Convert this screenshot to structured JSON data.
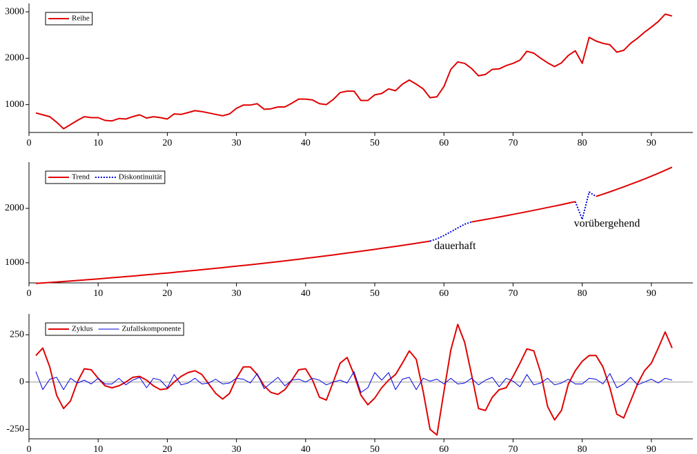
{
  "chart_data": [
    {
      "type": "line",
      "legend": "upper left",
      "xlim": [
        0,
        96
      ],
      "xticks": [
        0,
        10,
        20,
        30,
        40,
        50,
        60,
        70,
        80,
        90
      ],
      "ylim": [
        400,
        3180
      ],
      "yticks": [
        1000,
        2000,
        3000
      ],
      "x": [
        1,
        2,
        3,
        4,
        5,
        6,
        7,
        8,
        9,
        10,
        11,
        12,
        13,
        14,
        15,
        16,
        17,
        18,
        19,
        20,
        21,
        22,
        23,
        24,
        25,
        26,
        27,
        28,
        29,
        30,
        31,
        32,
        33,
        34,
        35,
        36,
        37,
        38,
        39,
        40,
        41,
        42,
        43,
        44,
        45,
        46,
        47,
        48,
        49,
        50,
        51,
        52,
        53,
        54,
        55,
        56,
        57,
        58,
        59,
        60,
        61,
        62,
        63,
        64,
        65,
        66,
        67,
        68,
        69,
        70,
        71,
        72,
        73,
        74,
        75,
        76,
        77,
        78,
        79,
        80,
        81,
        82,
        83,
        84,
        85,
        86,
        87,
        88,
        89,
        90,
        91,
        92,
        93
      ],
      "series": [
        {
          "name": "Reihe",
          "color": "#e00000",
          "linestyle": "solid",
          "linewidth": 2,
          "values": [
            820,
            780,
            740,
            620,
            480,
            570,
            660,
            740,
            720,
            720,
            660,
            650,
            700,
            690,
            740,
            780,
            710,
            740,
            720,
            690,
            800,
            790,
            830,
            870,
            850,
            820,
            790,
            760,
            800,
            920,
            990,
            990,
            1020,
            900,
            910,
            950,
            950,
            1030,
            1120,
            1120,
            1100,
            1020,
            1000,
            1110,
            1260,
            1290,
            1290,
            1090,
            1090,
            1210,
            1240,
            1340,
            1300,
            1440,
            1530,
            1440,
            1340,
            1150,
            1170,
            1390,
            1760,
            1920,
            1890,
            1780,
            1620,
            1650,
            1760,
            1770,
            1840,
            1890,
            1960,
            2150,
            2110,
            2000,
            1900,
            1820,
            1900,
            2060,
            2160,
            1890,
            2450,
            2370,
            2320,
            2290,
            2130,
            2170,
            2320,
            2430,
            2560,
            2670,
            2790,
            2950,
            2910
          ]
        }
      ]
    },
    {
      "type": "line",
      "legend": "upper left",
      "xlim": [
        0,
        96
      ],
      "xticks": [
        0,
        10,
        20,
        30,
        40,
        50,
        60,
        70,
        80,
        90
      ],
      "ylim": [
        630,
        2850
      ],
      "yticks": [
        1000,
        2000
      ],
      "annotations": [
        "dauerhaft",
        "vorübergehend"
      ],
      "x": [
        1,
        2,
        3,
        4,
        5,
        6,
        7,
        8,
        9,
        10,
        11,
        12,
        13,
        14,
        15,
        16,
        17,
        18,
        19,
        20,
        21,
        22,
        23,
        24,
        25,
        26,
        27,
        28,
        29,
        30,
        31,
        32,
        33,
        34,
        35,
        36,
        37,
        38,
        39,
        40,
        41,
        42,
        43,
        44,
        45,
        46,
        47,
        48,
        49,
        50,
        51,
        52,
        53,
        54,
        55,
        56,
        57,
        58,
        59,
        60,
        61,
        62,
        63,
        64,
        65,
        66,
        67,
        68,
        69,
        70,
        71,
        72,
        73,
        74,
        75,
        76,
        77,
        78,
        79,
        80,
        81,
        82,
        83,
        84,
        85,
        86,
        87,
        88,
        89,
        90,
        91,
        92,
        93
      ],
      "series": [
        {
          "name": "Trend",
          "color": "#e00000",
          "linestyle": "solid",
          "linewidth": 2,
          "values": [
            620,
            629,
            638,
            647,
            656,
            665,
            675,
            685,
            694,
            704,
            714,
            725,
            735,
            746,
            756,
            767,
            778,
            789,
            801,
            812,
            824,
            836,
            848,
            860,
            872,
            885,
            898,
            910,
            924,
            937,
            950,
            964,
            978,
            992,
            1006,
            1021,
            1035,
            1050,
            1065,
            1081,
            1096,
            1112,
            1128,
            1144,
            1161,
            1178,
            1194,
            1212,
            1229,
            1247,
            1265,
            1283,
            1301,
            1320,
            1339,
            1358,
            1378,
            1398,
            null,
            null,
            null,
            null,
            null,
            1750,
            1773,
            1796,
            1819,
            1842,
            1866,
            1890,
            1914,
            1939,
            1964,
            1990,
            2016,
            2042,
            2069,
            2096,
            2124,
            null,
            null,
            2220,
            2262,
            2305,
            2350,
            2396,
            2443,
            2491,
            2541,
            2592,
            2645,
            2700,
            2757
          ]
        },
        {
          "name": "Diskontinuität",
          "color": "#0000dd",
          "linestyle": "dotted",
          "linewidth": 2,
          "values": [
            null,
            null,
            null,
            null,
            null,
            null,
            null,
            null,
            null,
            null,
            null,
            null,
            null,
            null,
            null,
            null,
            null,
            null,
            null,
            null,
            null,
            null,
            null,
            null,
            null,
            null,
            null,
            null,
            null,
            null,
            null,
            null,
            null,
            null,
            null,
            null,
            null,
            null,
            null,
            null,
            null,
            null,
            null,
            null,
            null,
            null,
            null,
            null,
            null,
            null,
            null,
            null,
            null,
            null,
            null,
            null,
            null,
            1398,
            1440,
            1500,
            1570,
            1640,
            1710,
            1750,
            null,
            null,
            null,
            null,
            null,
            null,
            null,
            null,
            null,
            null,
            null,
            null,
            null,
            null,
            2124,
            1800,
            2300,
            2220,
            null,
            null,
            null,
            null,
            null,
            null,
            null,
            null,
            null,
            null,
            null
          ]
        }
      ]
    },
    {
      "type": "line",
      "legend": "upper left",
      "xlim": [
        0,
        96
      ],
      "xticks": [
        0,
        10,
        20,
        30,
        40,
        50,
        60,
        70,
        80,
        90
      ],
      "ylim": [
        -300,
        360
      ],
      "yticks": [
        -250,
        0,
        250
      ],
      "reference_line": 0,
      "x": [
        1,
        2,
        3,
        4,
        5,
        6,
        7,
        8,
        9,
        10,
        11,
        12,
        13,
        14,
        15,
        16,
        17,
        18,
        19,
        20,
        21,
        22,
        23,
        24,
        25,
        26,
        27,
        28,
        29,
        30,
        31,
        32,
        33,
        34,
        35,
        36,
        37,
        38,
        39,
        40,
        41,
        42,
        43,
        44,
        45,
        46,
        47,
        48,
        49,
        50,
        51,
        52,
        53,
        54,
        55,
        56,
        57,
        58,
        59,
        60,
        61,
        62,
        63,
        64,
        65,
        66,
        67,
        68,
        69,
        70,
        71,
        72,
        73,
        74,
        75,
        76,
        77,
        78,
        79,
        80,
        81,
        82,
        83,
        84,
        85,
        86,
        87,
        88,
        89,
        90,
        91,
        92,
        93
      ],
      "series": [
        {
          "name": "Zyklus",
          "color": "#e00000",
          "linestyle": "solid",
          "linewidth": 2,
          "values": [
            140,
            180,
            80,
            -70,
            -140,
            -100,
            0,
            70,
            65,
            20,
            -20,
            -30,
            -20,
            0,
            25,
            30,
            10,
            -20,
            -40,
            -35,
            0,
            30,
            50,
            60,
            40,
            -10,
            -60,
            -90,
            -60,
            20,
            80,
            80,
            40,
            -20,
            -55,
            -65,
            -40,
            10,
            65,
            70,
            10,
            -80,
            -95,
            0,
            100,
            130,
            40,
            -70,
            -120,
            -85,
            -30,
            10,
            40,
            100,
            165,
            120,
            -50,
            -250,
            -280,
            -50,
            170,
            305,
            210,
            40,
            -140,
            -150,
            -80,
            -40,
            -30,
            30,
            100,
            175,
            165,
            50,
            -130,
            -200,
            -150,
            -10,
            60,
            110,
            140,
            140,
            80,
            -30,
            -170,
            -190,
            -100,
            -10,
            60,
            100,
            180,
            265,
            180
          ]
        },
        {
          "name": "Zufallskomponente",
          "color": "#0000dd",
          "linestyle": "solid",
          "linewidth": 1,
          "values": [
            55,
            -40,
            15,
            25,
            -40,
            20,
            -5,
            10,
            -10,
            20,
            -10,
            -10,
            20,
            -15,
            10,
            25,
            -30,
            20,
            10,
            -30,
            40,
            -15,
            -5,
            20,
            -10,
            -5,
            15,
            -10,
            -5,
            20,
            15,
            -5,
            45,
            -35,
            -5,
            25,
            -20,
            10,
            15,
            0,
            20,
            10,
            -15,
            0,
            10,
            -5,
            55,
            -55,
            -30,
            50,
            10,
            50,
            -40,
            15,
            25,
            -40,
            20,
            5,
            15,
            -10,
            20,
            -10,
            -5,
            20,
            -15,
            10,
            25,
            -25,
            20,
            5,
            -25,
            40,
            -15,
            -5,
            20,
            -15,
            -5,
            15,
            -10,
            -10,
            20,
            15,
            -10,
            45,
            -30,
            -10,
            25,
            -15,
            0,
            15,
            -5,
            20,
            10
          ]
        }
      ]
    }
  ]
}
